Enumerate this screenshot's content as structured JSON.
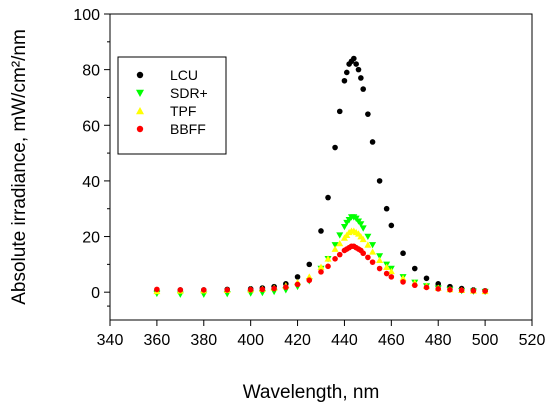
{
  "chart_data": {
    "type": "scatter",
    "xlabel": "Wavelength, nm",
    "ylabel": "Absolute irradiance, mW/cm²/nm",
    "xlim": [
      340,
      520
    ],
    "ylim": [
      -10,
      100
    ],
    "xticks": [
      340,
      360,
      380,
      400,
      420,
      440,
      460,
      480,
      500,
      520
    ],
    "yticks": [
      0,
      20,
      40,
      60,
      80,
      100
    ],
    "grid": false,
    "legend": "top-left",
    "series": [
      {
        "name": "LCU",
        "color": "#000000",
        "marker": "circle",
        "x": [
          360,
          370,
          380,
          390,
          400,
          405,
          410,
          415,
          420,
          425,
          430,
          433,
          436,
          438,
          440,
          441,
          442,
          443,
          444,
          445,
          446,
          447,
          448,
          450,
          452,
          455,
          458,
          460,
          465,
          470,
          475,
          480,
          485,
          490,
          495,
          500
        ],
        "y": [
          0.5,
          0.8,
          0.8,
          1.0,
          1.2,
          1.5,
          2.0,
          3.0,
          5.5,
          10,
          22,
          34,
          52,
          65,
          76,
          79,
          82,
          83,
          84,
          82,
          80,
          77,
          73,
          64,
          54,
          40,
          30,
          24,
          14,
          8.5,
          5,
          3,
          2,
          1.3,
          0.8,
          0.5
        ]
      },
      {
        "name": "SDR+",
        "color": "#00ff00",
        "marker": "triangle-down",
        "x": [
          360,
          370,
          380,
          390,
          400,
          405,
          410,
          415,
          420,
          425,
          430,
          433,
          436,
          438,
          440,
          441,
          442,
          443,
          444,
          445,
          446,
          447,
          448,
          450,
          452,
          455,
          458,
          460,
          465,
          470,
          475,
          480,
          485,
          490,
          495,
          500
        ],
        "y": [
          -0.5,
          -0.8,
          -0.8,
          -0.6,
          -0.4,
          -0.2,
          0.2,
          0.8,
          2.0,
          4.0,
          8.5,
          12,
          17,
          20.5,
          23.5,
          25,
          26,
          27,
          27,
          26.5,
          25.5,
          24.5,
          23,
          20,
          17,
          13,
          10,
          8.5,
          5.5,
          3.5,
          2.2,
          1.4,
          0.9,
          0.5,
          0.3,
          0.2
        ]
      },
      {
        "name": "TPF",
        "color": "#ffff00",
        "marker": "triangle-up",
        "x": [
          360,
          370,
          380,
          390,
          400,
          405,
          410,
          415,
          420,
          425,
          430,
          433,
          436,
          438,
          440,
          441,
          442,
          443,
          444,
          445,
          446,
          447,
          448,
          450,
          452,
          455,
          458,
          460,
          465,
          470,
          475,
          480,
          485,
          490,
          495,
          500
        ],
        "y": [
          0.3,
          0.5,
          0.6,
          0.7,
          0.9,
          1.1,
          1.5,
          2.3,
          3.5,
          5.5,
          9,
          12,
          15.5,
          17.5,
          19.5,
          20.5,
          21.5,
          22,
          22,
          21.5,
          21,
          20,
          19,
          17,
          14.5,
          11.5,
          9,
          7.5,
          5,
          3.3,
          2.2,
          1.5,
          1.0,
          0.7,
          0.5,
          0.3
        ]
      },
      {
        "name": "BBFF",
        "color": "#ff0000",
        "marker": "circle",
        "x": [
          360,
          370,
          380,
          390,
          400,
          405,
          410,
          415,
          420,
          425,
          430,
          433,
          436,
          438,
          440,
          441,
          442,
          443,
          444,
          445,
          446,
          447,
          448,
          450,
          452,
          455,
          458,
          460,
          465,
          470,
          475,
          480,
          485,
          490,
          495,
          500
        ],
        "y": [
          1.0,
          0.8,
          0.8,
          0.8,
          0.9,
          1.0,
          1.3,
          1.8,
          2.8,
          4.3,
          7.3,
          9.3,
          12,
          13.5,
          15,
          15.5,
          16,
          16.5,
          16.5,
          16,
          15.5,
          15,
          14,
          12.5,
          10.8,
          8.5,
          6.7,
          5.5,
          3.7,
          2.5,
          1.7,
          1.2,
          0.9,
          0.7,
          0.5,
          0.4
        ]
      }
    ]
  }
}
